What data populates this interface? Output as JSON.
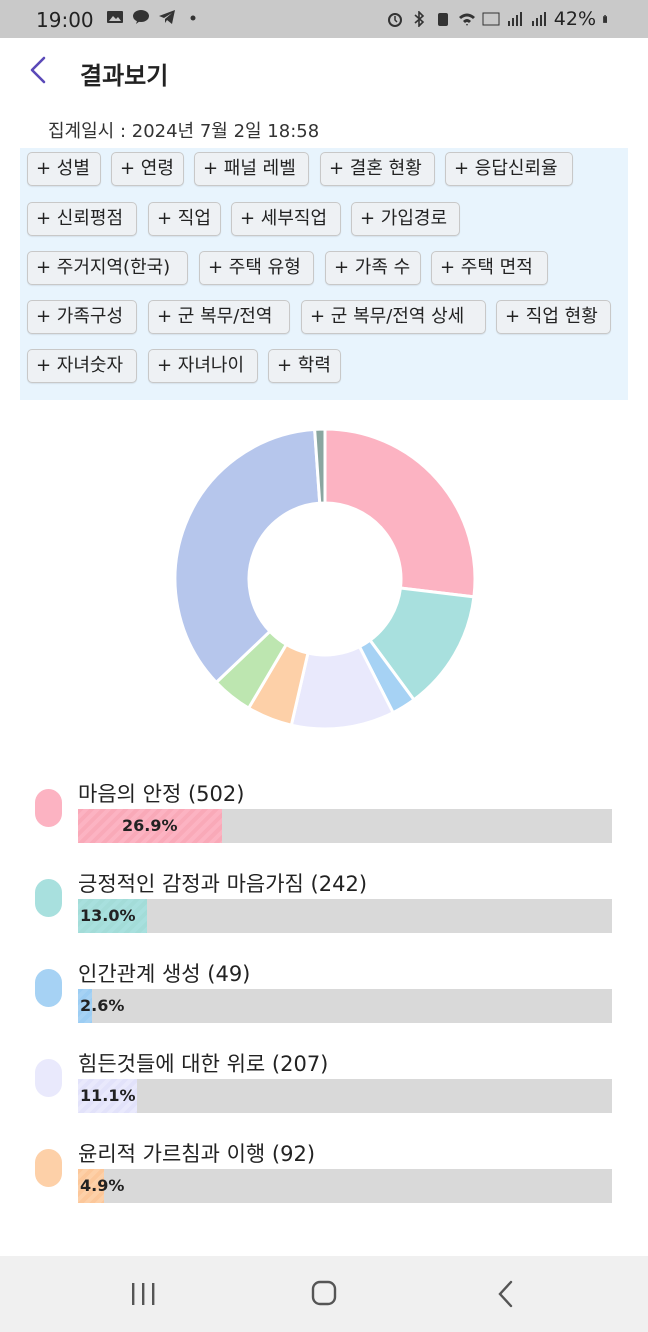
{
  "status": {
    "time": "19:00",
    "battery": "42%"
  },
  "header": {
    "title": "결과보기"
  },
  "aggregate": {
    "text": "집계일시 : 2024년 7월 2일 18:58"
  },
  "filters": [
    "+ 성별",
    "+ 연령",
    "+ 패널 레벨",
    "+ 결혼 현황",
    "+ 응답신뢰율",
    "+ 신뢰평점",
    "+ 직업",
    "+ 세부직업",
    "+ 가입경로",
    "+ 주거지역(한국)",
    "+ 주택 유형",
    "+ 가족 수",
    "+ 주택 면적",
    "+ 가족구성",
    "+ 군 복무/전역",
    "+ 군 복무/전역 상세",
    "+ 직업 현황",
    "+ 자녀숫자",
    "+ 자녀나이",
    "+ 학력"
  ],
  "chart_data": {
    "type": "pie",
    "style": "donut",
    "slices": [
      {
        "label": "마음의 안정",
        "count": 502,
        "percent": 26.9,
        "color": "#fcb3c2"
      },
      {
        "label": "긍정적인 감정과 마음가짐",
        "count": 242,
        "percent": 13.0,
        "color": "#a8e0de"
      },
      {
        "label": "인간관계 생성",
        "count": 49,
        "percent": 2.6,
        "color": "#a6d2f4"
      },
      {
        "label": "힘든것들에 대한 위로",
        "count": 207,
        "percent": 11.1,
        "color": "#e9e9fc"
      },
      {
        "label": "윤리적 가르침과 이행",
        "count": 92,
        "percent": 4.9,
        "color": "#fdd0a8"
      },
      {
        "percent": 4.4,
        "color": "#bde6b0"
      },
      {
        "percent": 36.0,
        "color": "#b6c6ec"
      },
      {
        "percent": 1.1,
        "color": "#8aa6a0"
      }
    ]
  },
  "legend": [
    {
      "label": "마음의 안정 (502)",
      "percent_text": "26.9%",
      "percent": 26.9,
      "color": "#fcb3c2",
      "fill": "#f9a9b8"
    },
    {
      "label": "긍정적인 감정과 마음가짐 (242)",
      "percent_text": "13.0%",
      "percent": 13.0,
      "color": "#a8e0de",
      "fill": "#a3dcd8"
    },
    {
      "label": "인간관계 생성 (49)",
      "percent_text": "2.6%",
      "percent": 2.6,
      "color": "#a6d2f4",
      "fill": "#9ccdf3"
    },
    {
      "label": "힘든것들에 대한 위로 (207)",
      "percent_text": "11.1%",
      "percent": 11.1,
      "color": "#e9e9fc",
      "fill": "#e2e2fa"
    },
    {
      "label": "윤리적 가르침과 이행 (92)",
      "percent_text": "4.9%",
      "percent": 4.9,
      "color": "#fdd0a8",
      "fill": "#fcc79a"
    }
  ]
}
